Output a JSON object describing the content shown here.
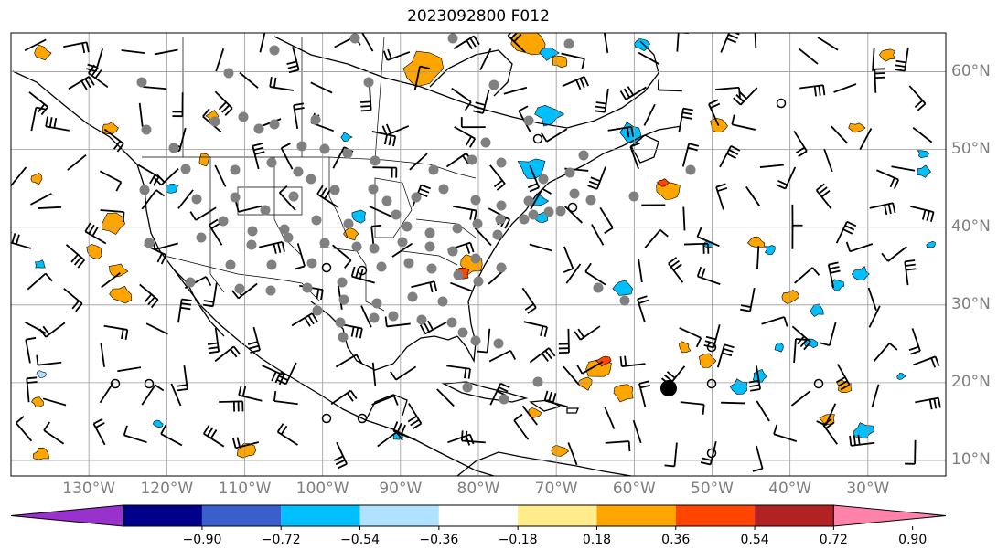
{
  "title": "2023092800 F012",
  "map": {
    "lon_range": [
      -140,
      -20
    ],
    "lat_range": [
      8,
      65
    ],
    "lon_ticks": [
      -130,
      -120,
      -110,
      -100,
      -90,
      -80,
      -70,
      -60,
      -50,
      -40,
      -30
    ],
    "lat_ticks": [
      10,
      20,
      30,
      40,
      50,
      60
    ],
    "lon_labels": [
      "130°W",
      "120°W",
      "110°W",
      "100°W",
      "90°W",
      "80°W",
      "70°W",
      "60°W",
      "50°W",
      "40°W",
      "30°W"
    ],
    "lat_labels": [
      "10°N",
      "20°N",
      "30°N",
      "40°N",
      "50°N",
      "60°N"
    ],
    "grid": true
  },
  "colorbar": {
    "labels": [
      "−0.90",
      "−0.72",
      "−0.54",
      "−0.36",
      "−0.18",
      "0.18",
      "0.36",
      "0.54",
      "0.72",
      "0.90"
    ],
    "colors": [
      "#9932cc",
      "#00008b",
      "#3a5fcd",
      "#00bfff",
      "#b0e2ff",
      "#ffffff",
      "#ffec8b",
      "#ffa500",
      "#ff4500",
      "#b22222",
      "#ff82ab"
    ],
    "extend": "both"
  }
}
